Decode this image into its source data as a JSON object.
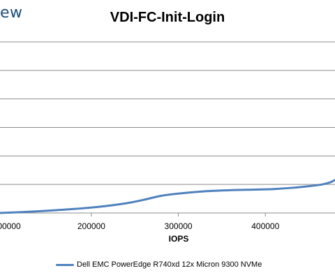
{
  "logo": {
    "text": "ew"
  },
  "chart_data": {
    "type": "line",
    "title": "VDI-FC-Init-Login",
    "xlabel": "IOPS",
    "ylabel": "",
    "x_ticks": [
      "200000",
      "300000",
      "400000"
    ],
    "x_tick_partial": "00000",
    "xlim": [
      95000,
      480000
    ],
    "ylim": [
      0,
      300
    ],
    "grid": true,
    "legend_position": "bottom",
    "series": [
      {
        "name": "Dell EMC PowerEdge R740xd 12x Micron 9300 NVMe",
        "color": "#4f81bd",
        "x": [
          95000,
          120000,
          150000,
          180000,
          210000,
          240000,
          260000,
          280000,
          300000,
          330000,
          360000,
          390000,
          410000,
          430000,
          450000,
          465000,
          475000,
          480000
        ],
        "y": [
          0,
          1.5,
          4,
          7,
          11,
          17,
          23,
          30,
          34,
          38,
          40,
          41,
          42,
          44,
          47,
          50,
          54,
          58
        ]
      }
    ]
  }
}
